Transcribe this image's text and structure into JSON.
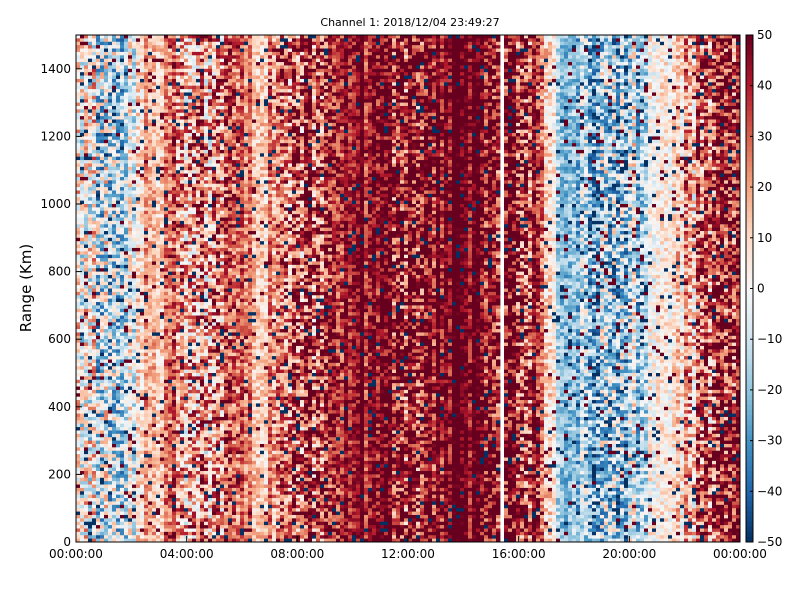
{
  "chart_data": {
    "type": "heatmap",
    "title": "Channel 1: 2018/12/04 23:49:27",
    "xlabel": "",
    "ylabel": "Range (Km)",
    "x_ticks": [
      "00:00:00",
      "04:00:00",
      "08:00:00",
      "12:00:00",
      "16:00:00",
      "20:00:00",
      "00:00:00"
    ],
    "x_range_hours": [
      0,
      24
    ],
    "y_ticks": [
      "0",
      "200",
      "400",
      "600",
      "800",
      "1000",
      "1200",
      "1400"
    ],
    "ylim": [
      0,
      1500
    ],
    "colorbar": {
      "ticks": [
        "50",
        "40",
        "30",
        "20",
        "10",
        "0",
        "−10",
        "−20",
        "−30",
        "−40",
        "−50"
      ],
      "range": [
        -50,
        50
      ],
      "colormap": "RdBu_r"
    },
    "value_pattern": {
      "description_hours_to_typical_value": [
        [
          0,
          5
        ],
        [
          1.5,
          -10
        ],
        [
          3,
          20
        ],
        [
          5.5,
          30
        ],
        [
          7,
          20
        ],
        [
          8.5,
          35
        ],
        [
          10.5,
          45
        ],
        [
          14,
          48
        ],
        [
          15.3,
          48
        ],
        [
          16.5,
          40
        ],
        [
          17.5,
          -10
        ],
        [
          19,
          -20
        ],
        [
          21,
          -5
        ],
        [
          23,
          35
        ],
        [
          24,
          40
        ]
      ],
      "gap_hours": [
        15.35,
        15.45
      ]
    },
    "grid": false,
    "colors": {
      "max": "#67001f",
      "mid": "#f7f7f7",
      "min": "#053061"
    }
  }
}
